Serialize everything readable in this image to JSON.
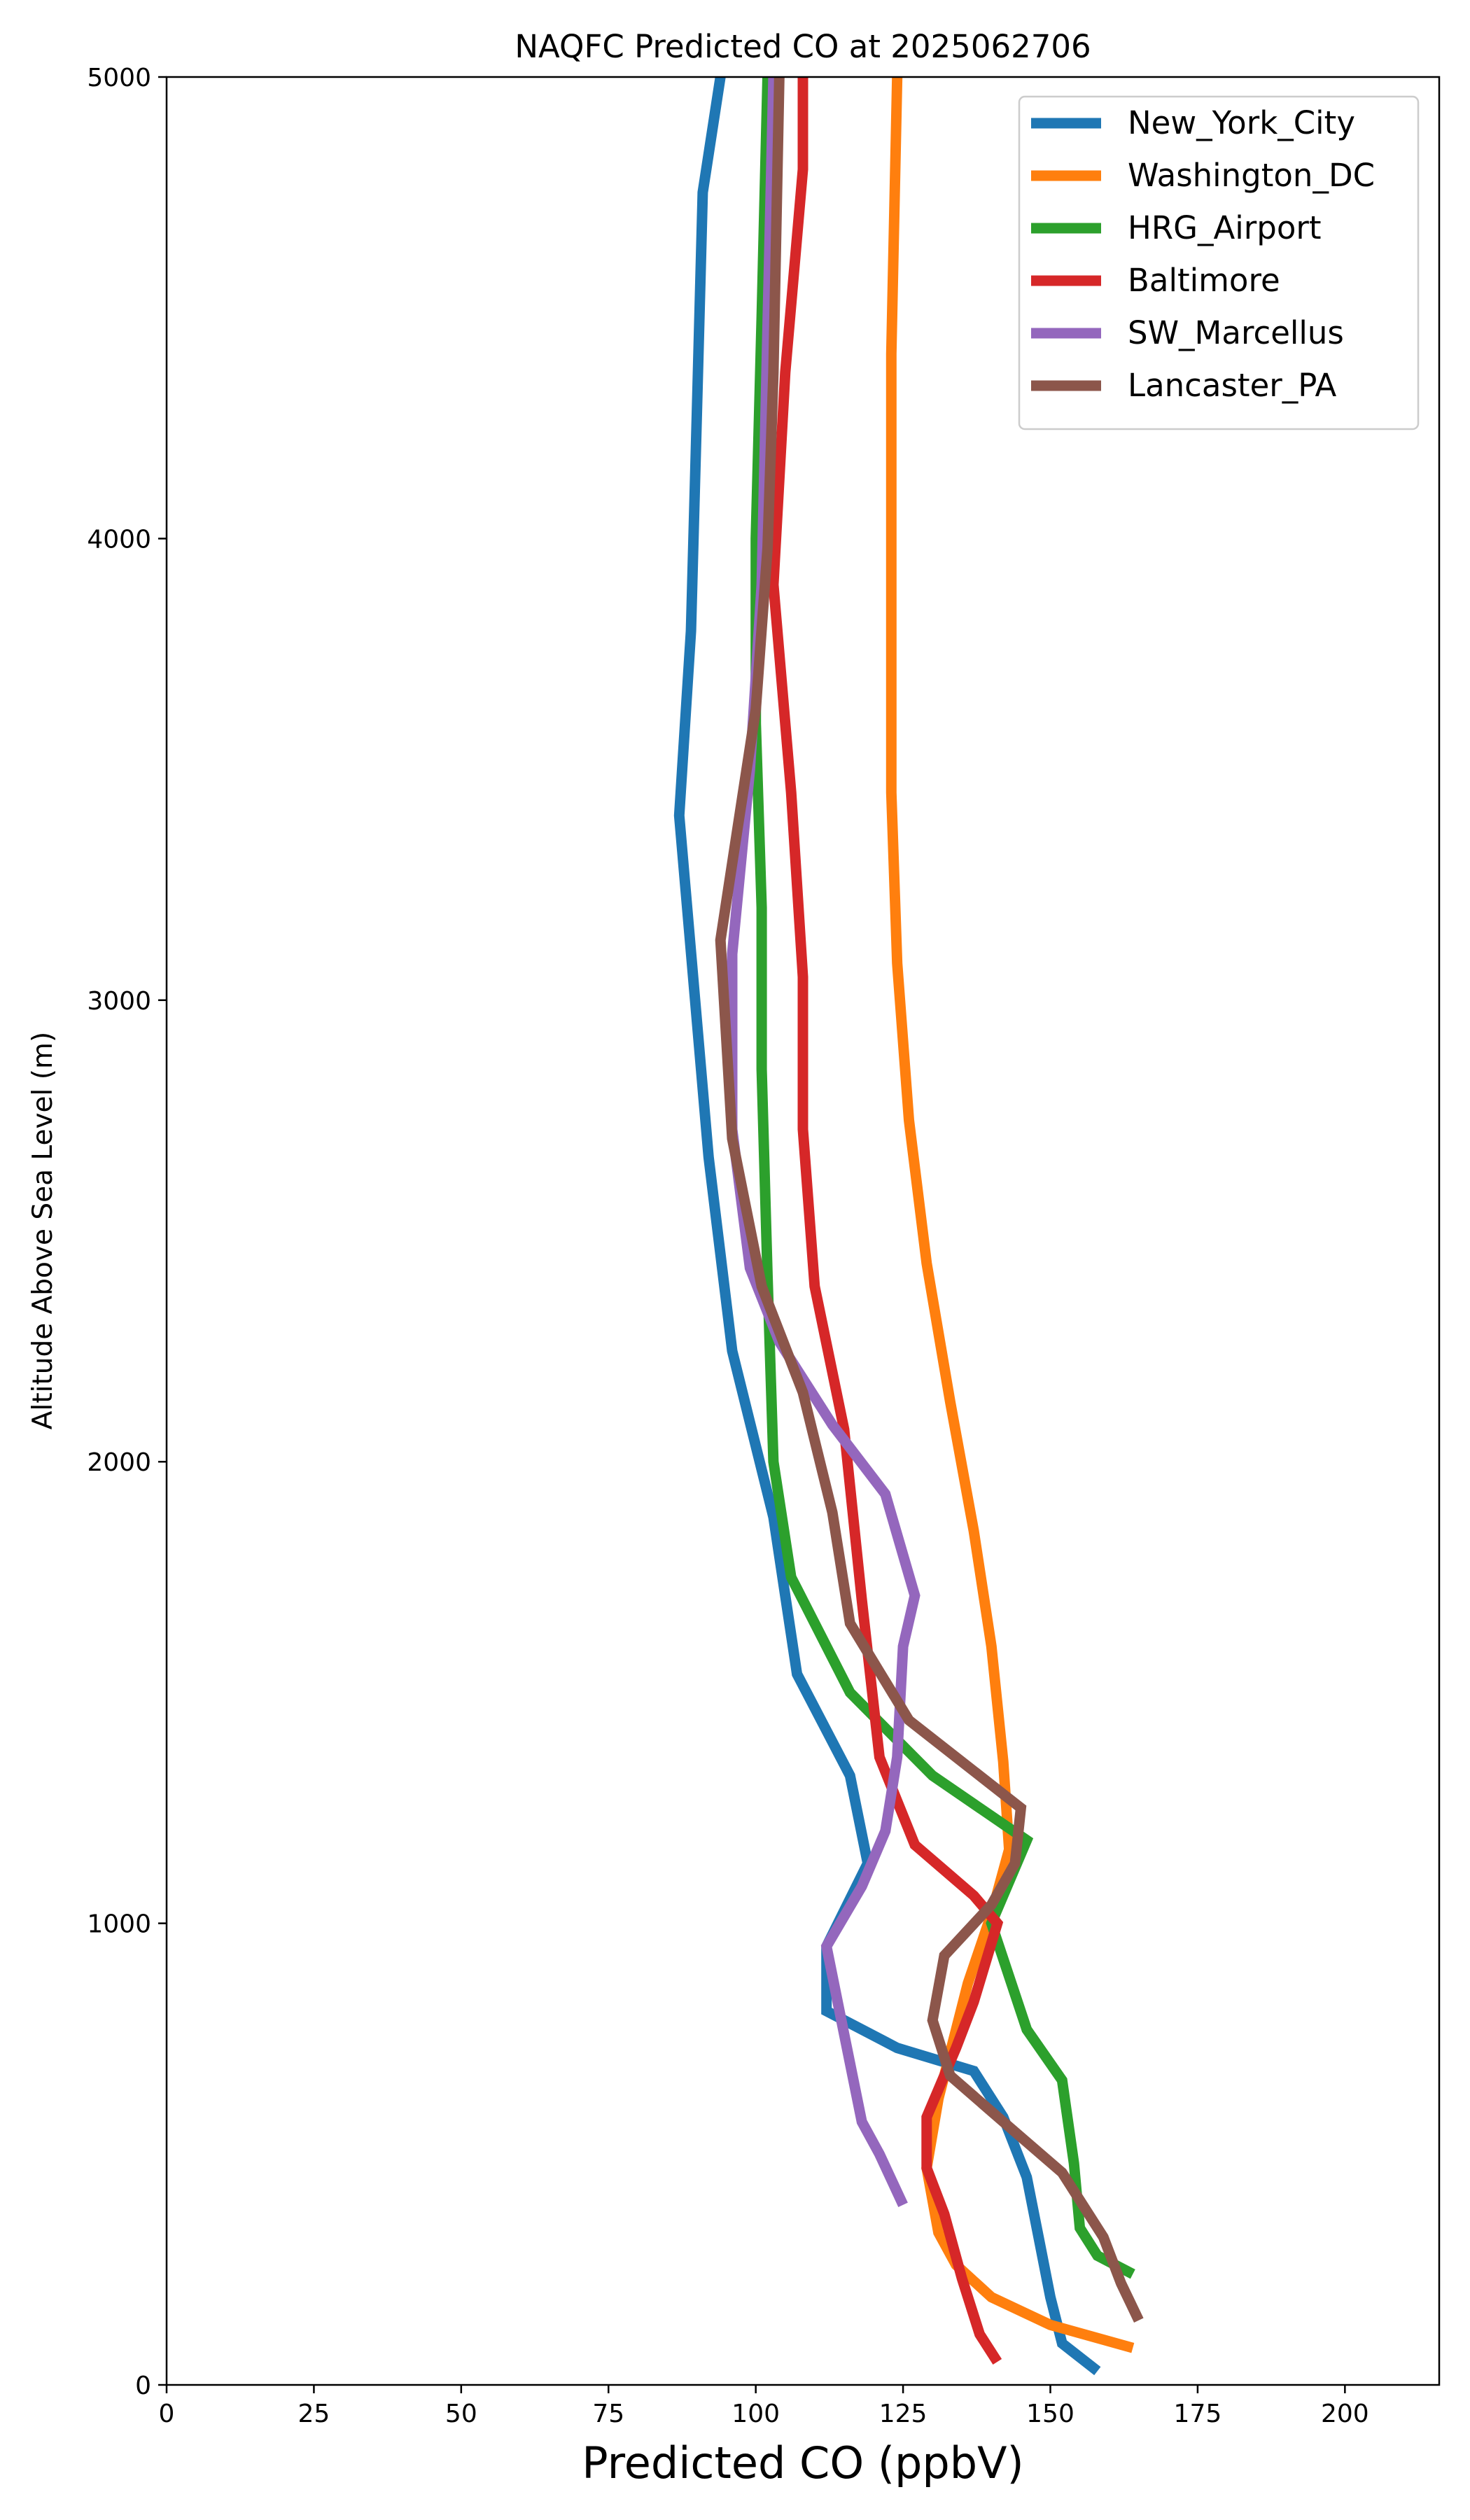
{
  "chart_data": {
    "type": "line",
    "title": "NAQFC Predicted CO at 2025062706",
    "xlabel": "Predicted CO (ppbV)",
    "ylabel": "Altitude Above Sea Level (m)",
    "xlim": [
      0,
      216
    ],
    "ylim": [
      0,
      5000
    ],
    "xticks": [
      0,
      25,
      50,
      75,
      100,
      125,
      150,
      175,
      200
    ],
    "yticks": [
      0,
      1000,
      2000,
      3000,
      4000,
      5000
    ],
    "grid": false,
    "legend_position": "top-right",
    "series": [
      {
        "name": "New_York_City",
        "color": "#1f77b4",
        "points": [
          [
            158,
            30
          ],
          [
            152,
            90
          ],
          [
            150,
            190
          ],
          [
            148,
            320
          ],
          [
            146,
            450
          ],
          [
            142,
            580
          ],
          [
            137,
            680
          ],
          [
            124,
            730
          ],
          [
            112,
            810
          ],
          [
            112,
            950
          ],
          [
            119,
            1130
          ],
          [
            116,
            1320
          ],
          [
            107,
            1540
          ],
          [
            103,
            1880
          ],
          [
            96,
            2240
          ],
          [
            92,
            2660
          ],
          [
            87,
            3400
          ],
          [
            89,
            3800
          ],
          [
            90,
            4270
          ],
          [
            91,
            4750
          ],
          [
            94,
            5000
          ]
        ]
      },
      {
        "name": "Washington_DC",
        "color": "#ff7f0e",
        "points": [
          [
            164,
            80
          ],
          [
            150,
            130
          ],
          [
            140,
            190
          ],
          [
            134,
            260
          ],
          [
            131,
            330
          ],
          [
            129,
            470
          ],
          [
            131,
            620
          ],
          [
            136,
            870
          ],
          [
            140,
            1020
          ],
          [
            143,
            1160
          ],
          [
            142,
            1350
          ],
          [
            140,
            1600
          ],
          [
            137,
            1850
          ],
          [
            133,
            2130
          ],
          [
            129,
            2430
          ],
          [
            126,
            2740
          ],
          [
            124,
            3080
          ],
          [
            123,
            3450
          ],
          [
            123,
            3850
          ],
          [
            123,
            4400
          ],
          [
            124,
            5000
          ]
        ]
      },
      {
        "name": "HRG_Airport",
        "color": "#2ca02c",
        "points": [
          [
            164,
            240
          ],
          [
            158,
            280
          ],
          [
            155,
            340
          ],
          [
            154,
            480
          ],
          [
            152,
            660
          ],
          [
            146,
            770
          ],
          [
            140,
            1000
          ],
          [
            146,
            1180
          ],
          [
            130,
            1320
          ],
          [
            116,
            1500
          ],
          [
            106,
            1750
          ],
          [
            103,
            2000
          ],
          [
            102,
            2400
          ],
          [
            101,
            2850
          ],
          [
            101,
            3200
          ],
          [
            100,
            3600
          ],
          [
            100,
            4000
          ],
          [
            101,
            4480
          ],
          [
            102,
            5000
          ]
        ]
      },
      {
        "name": "Baltimore",
        "color": "#d62728",
        "points": [
          [
            141,
            50
          ],
          [
            138,
            110
          ],
          [
            135,
            230
          ],
          [
            132,
            370
          ],
          [
            129,
            470
          ],
          [
            129,
            580
          ],
          [
            134,
            730
          ],
          [
            137,
            830
          ],
          [
            141,
            1000
          ],
          [
            137,
            1060
          ],
          [
            127,
            1170
          ],
          [
            121,
            1360
          ],
          [
            118,
            1700
          ],
          [
            115,
            2070
          ],
          [
            110,
            2380
          ],
          [
            108,
            2720
          ],
          [
            108,
            3050
          ],
          [
            106,
            3450
          ],
          [
            103,
            3900
          ],
          [
            105,
            4360
          ],
          [
            108,
            4800
          ],
          [
            108,
            5000
          ]
        ]
      },
      {
        "name": "SW_Marcellus",
        "color": "#9467bd",
        "points": [
          [
            125,
            390
          ],
          [
            121,
            500
          ],
          [
            118,
            570
          ],
          [
            115,
            760
          ],
          [
            112,
            950
          ],
          [
            118,
            1080
          ],
          [
            122,
            1200
          ],
          [
            124,
            1360
          ],
          [
            125,
            1600
          ],
          [
            127,
            1710
          ],
          [
            122,
            1930
          ],
          [
            113,
            2080
          ],
          [
            104,
            2260
          ],
          [
            99,
            2420
          ],
          [
            96,
            2720
          ],
          [
            96,
            3100
          ],
          [
            99,
            3500
          ],
          [
            101,
            3900
          ],
          [
            102,
            4460
          ],
          [
            103,
            5000
          ]
        ]
      },
      {
        "name": "Lancaster_PA",
        "color": "#8c564b",
        "points": [
          [
            165,
            140
          ],
          [
            162,
            220
          ],
          [
            159,
            320
          ],
          [
            152,
            460
          ],
          [
            142,
            570
          ],
          [
            133,
            670
          ],
          [
            130,
            790
          ],
          [
            132,
            930
          ],
          [
            140,
            1040
          ],
          [
            144,
            1130
          ],
          [
            145,
            1250
          ],
          [
            126,
            1440
          ],
          [
            116,
            1650
          ],
          [
            113,
            1890
          ],
          [
            108,
            2150
          ],
          [
            101,
            2380
          ],
          [
            96,
            2700
          ],
          [
            94,
            3130
          ],
          [
            97,
            3380
          ],
          [
            100,
            3630
          ],
          [
            102,
            3980
          ],
          [
            103,
            4360
          ],
          [
            104,
            5000
          ]
        ]
      }
    ]
  }
}
